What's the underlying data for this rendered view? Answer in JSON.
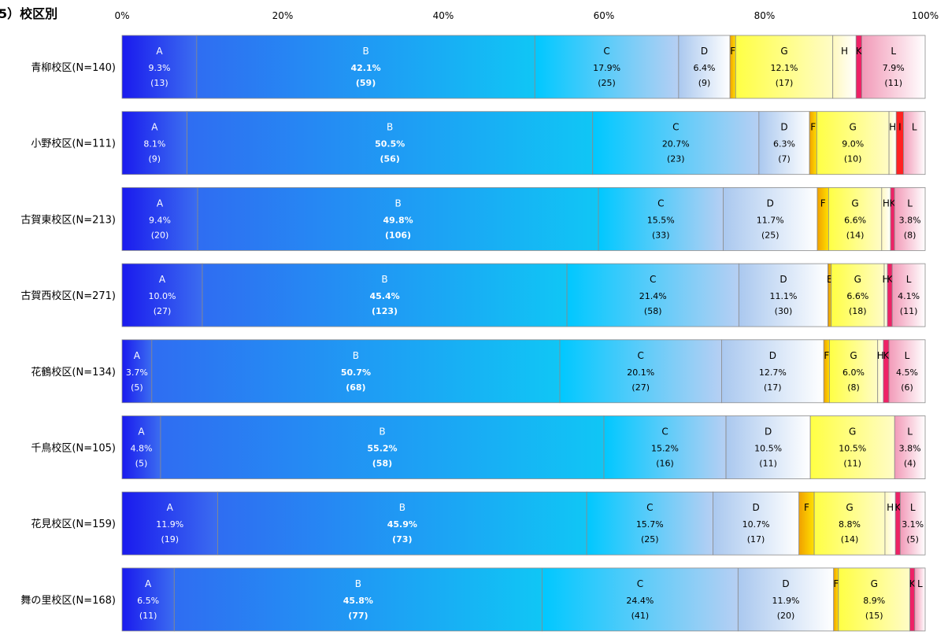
{
  "chart_data": {
    "type": "bar",
    "orientation": "horizontal",
    "stacked": true,
    "normalized": true,
    "title": "5）校区別",
    "xlim": [
      0,
      100
    ],
    "x_ticks": [
      "0%",
      "20%",
      "40%",
      "60%",
      "80%",
      "100%"
    ],
    "grid": false,
    "legend": "none",
    "segment_colors": {
      "A": [
        "#1a1aee",
        "#3b6df0"
      ],
      "B": [
        "#2f6df2",
        "#10c6f5"
      ],
      "C": [
        "#00c8ff",
        "#b6cff3"
      ],
      "D": [
        "#aac8ef",
        "#ffffff"
      ],
      "E": [
        "#d88810",
        "#ffd400"
      ],
      "F": [
        "#f0a000",
        "#ffe000"
      ],
      "G": [
        "#ffff44",
        "#fffcc6"
      ],
      "H": [
        "#fff9c0",
        "#ffffff"
      ],
      "I": [
        "#ff2222",
        "#ff2222"
      ],
      "J": [
        "#cc0000",
        "#cc0000"
      ],
      "K": [
        "#ee2266",
        "#ee2266"
      ],
      "L": [
        "#f29ab8",
        "#ffffff"
      ]
    },
    "rows": [
      {
        "label": "青柳校区(N=140)",
        "segments": [
          {
            "code": "A",
            "pct": 9.3,
            "pct_text": "9.3%",
            "count_text": "(13)"
          },
          {
            "code": "B",
            "pct": 42.1,
            "pct_text": "42.1%",
            "count_text": "(59)"
          },
          {
            "code": "C",
            "pct": 17.9,
            "pct_text": "17.9%",
            "count_text": "(25)"
          },
          {
            "code": "D",
            "pct": 6.4,
            "pct_text": "6.4%",
            "count_text": "(9)"
          },
          {
            "code": "F",
            "pct": 0.7
          },
          {
            "code": "G",
            "pct": 12.1,
            "pct_text": "12.1%",
            "count_text": "(17)"
          },
          {
            "code": "H",
            "pct": 2.9
          },
          {
            "code": "K",
            "pct": 0.7
          },
          {
            "code": "L",
            "pct": 7.9,
            "pct_text": "7.9%",
            "count_text": "(11)"
          }
        ]
      },
      {
        "label": "小野校区(N=111)",
        "segments": [
          {
            "code": "A",
            "pct": 8.1,
            "pct_text": "8.1%",
            "count_text": "(9)"
          },
          {
            "code": "B",
            "pct": 50.5,
            "pct_text": "50.5%",
            "count_text": "(56)"
          },
          {
            "code": "C",
            "pct": 20.7,
            "pct_text": "20.7%",
            "count_text": "(23)"
          },
          {
            "code": "D",
            "pct": 6.3,
            "pct_text": "6.3%",
            "count_text": "(7)"
          },
          {
            "code": "F",
            "pct": 0.9
          },
          {
            "code": "G",
            "pct": 9.0,
            "pct_text": "9.0%",
            "count_text": "(10)"
          },
          {
            "code": "H",
            "pct": 0.9
          },
          {
            "code": "I",
            "pct": 0.9
          },
          {
            "code": "L",
            "pct": 2.7
          }
        ]
      },
      {
        "label": "古賀東校区(N=213)",
        "segments": [
          {
            "code": "A",
            "pct": 9.4,
            "pct_text": "9.4%",
            "count_text": "(20)"
          },
          {
            "code": "B",
            "pct": 49.8,
            "pct_text": "49.8%",
            "count_text": "(106)"
          },
          {
            "code": "C",
            "pct": 15.5,
            "pct_text": "15.5%",
            "count_text": "(33)"
          },
          {
            "code": "D",
            "pct": 11.7,
            "pct_text": "11.7%",
            "count_text": "(25)"
          },
          {
            "code": "F",
            "pct": 1.4
          },
          {
            "code": "G",
            "pct": 6.6,
            "pct_text": "6.6%",
            "count_text": "(14)"
          },
          {
            "code": "H",
            "pct": 1.1
          },
          {
            "code": "K",
            "pct": 0.5
          },
          {
            "code": "L",
            "pct": 3.8,
            "pct_text": "3.8%",
            "count_text": "(8)"
          }
        ]
      },
      {
        "label": "古賀西校区(N=271)",
        "segments": [
          {
            "code": "A",
            "pct": 10.0,
            "pct_text": "10.0%",
            "count_text": "(27)"
          },
          {
            "code": "B",
            "pct": 45.4,
            "pct_text": "45.4%",
            "count_text": "(123)"
          },
          {
            "code": "C",
            "pct": 21.4,
            "pct_text": "21.4%",
            "count_text": "(58)"
          },
          {
            "code": "D",
            "pct": 11.1,
            "pct_text": "11.1%",
            "count_text": "(30)"
          },
          {
            "code": "E",
            "pct": 0.4
          },
          {
            "code": "G",
            "pct": 6.6,
            "pct_text": "6.6%",
            "count_text": "(18)"
          },
          {
            "code": "H",
            "pct": 0.4
          },
          {
            "code": "K",
            "pct": 0.6
          },
          {
            "code": "L",
            "pct": 4.1,
            "pct_text": "4.1%",
            "count_text": "(11)"
          }
        ]
      },
      {
        "label": "花鶴校区(N=134)",
        "segments": [
          {
            "code": "A",
            "pct": 3.7,
            "pct_text": "3.7%",
            "count_text": "(5)"
          },
          {
            "code": "B",
            "pct": 50.7,
            "pct_text": "50.7%",
            "count_text": "(68)"
          },
          {
            "code": "C",
            "pct": 20.1,
            "pct_text": "20.1%",
            "count_text": "(27)"
          },
          {
            "code": "D",
            "pct": 12.7,
            "pct_text": "12.7%",
            "count_text": "(17)"
          },
          {
            "code": "F",
            "pct": 0.7
          },
          {
            "code": "G",
            "pct": 6.0,
            "pct_text": "6.0%",
            "count_text": "(8)"
          },
          {
            "code": "H",
            "pct": 0.7
          },
          {
            "code": "K",
            "pct": 0.7
          },
          {
            "code": "L",
            "pct": 4.5,
            "pct_text": "4.5%",
            "count_text": "(6)"
          }
        ]
      },
      {
        "label": "千鳥校区(N=105)",
        "segments": [
          {
            "code": "A",
            "pct": 4.8,
            "pct_text": "4.8%",
            "count_text": "(5)"
          },
          {
            "code": "B",
            "pct": 55.2,
            "pct_text": "55.2%",
            "count_text": "(58)"
          },
          {
            "code": "C",
            "pct": 15.2,
            "pct_text": "15.2%",
            "count_text": "(16)"
          },
          {
            "code": "D",
            "pct": 10.5,
            "pct_text": "10.5%",
            "count_text": "(11)"
          },
          {
            "code": "G",
            "pct": 10.5,
            "pct_text": "10.5%",
            "count_text": "(11)"
          },
          {
            "code": "L",
            "pct": 3.8,
            "pct_text": "3.8%",
            "count_text": "(4)"
          }
        ]
      },
      {
        "label": "花見校区(N=159)",
        "segments": [
          {
            "code": "A",
            "pct": 11.9,
            "pct_text": "11.9%",
            "count_text": "(19)"
          },
          {
            "code": "B",
            "pct": 45.9,
            "pct_text": "45.9%",
            "count_text": "(73)"
          },
          {
            "code": "C",
            "pct": 15.7,
            "pct_text": "15.7%",
            "count_text": "(25)"
          },
          {
            "code": "D",
            "pct": 10.7,
            "pct_text": "10.7%",
            "count_text": "(17)"
          },
          {
            "code": "F",
            "pct": 1.9
          },
          {
            "code": "G",
            "pct": 8.8,
            "pct_text": "8.8%",
            "count_text": "(14)"
          },
          {
            "code": "H",
            "pct": 1.3
          },
          {
            "code": "K",
            "pct": 0.6
          },
          {
            "code": "L",
            "pct": 3.1,
            "pct_text": "3.1%",
            "count_text": "(5)"
          }
        ]
      },
      {
        "label": "舞の里校区(N=168)",
        "segments": [
          {
            "code": "A",
            "pct": 6.5,
            "pct_text": "6.5%",
            "count_text": "(11)"
          },
          {
            "code": "B",
            "pct": 45.8,
            "pct_text": "45.8%",
            "count_text": "(77)"
          },
          {
            "code": "C",
            "pct": 24.4,
            "pct_text": "24.4%",
            "count_text": "(41)"
          },
          {
            "code": "D",
            "pct": 11.9,
            "pct_text": "11.9%",
            "count_text": "(20)"
          },
          {
            "code": "F",
            "pct": 0.6
          },
          {
            "code": "G",
            "pct": 8.9,
            "pct_text": "8.9%",
            "count_text": "(15)"
          },
          {
            "code": "K",
            "pct": 0.6
          },
          {
            "code": "L",
            "pct": 1.3
          }
        ]
      }
    ]
  }
}
